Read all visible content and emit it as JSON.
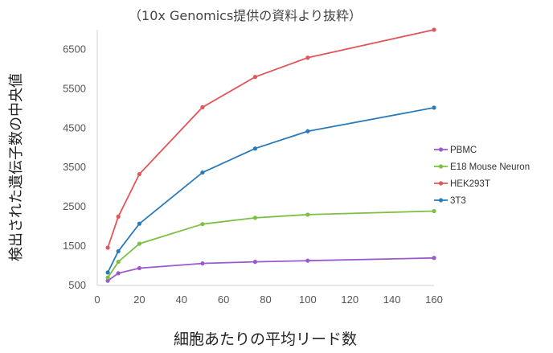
{
  "chart_data": {
    "type": "line",
    "note": "（10x Genomics提供の資料より抜粋）",
    "xlabel": "細胞あたりの平均リード数",
    "ylabel": "検出された遺伝子数の中央値",
    "xlim": [
      0,
      160
    ],
    "ylim": [
      500,
      7000
    ],
    "xticks": [
      0,
      20,
      40,
      60,
      80,
      100,
      120,
      140,
      160
    ],
    "yticks": [
      500,
      1500,
      2500,
      3500,
      4500,
      5500,
      6500
    ],
    "grid": false,
    "legend_position": "right",
    "series": [
      {
        "name": "PBMC",
        "color": "#9b59d0",
        "x": [
          5,
          10,
          20,
          50,
          75,
          100,
          160
        ],
        "y": [
          620,
          810,
          940,
          1060,
          1100,
          1130,
          1200
        ]
      },
      {
        "name": "E18 Mouse Neuron",
        "color": "#7cc043",
        "x": [
          5,
          10,
          20,
          50,
          75,
          100,
          160
        ],
        "y": [
          700,
          1100,
          1560,
          2060,
          2220,
          2300,
          2390
        ]
      },
      {
        "name": "HEK293T",
        "color": "#e0565a",
        "x": [
          5,
          10,
          20,
          50,
          75,
          100,
          160
        ],
        "y": [
          1460,
          2250,
          3330,
          5030,
          5800,
          6290,
          7000
        ]
      },
      {
        "name": "3T3",
        "color": "#2b7bba",
        "x": [
          5,
          10,
          20,
          50,
          75,
          100,
          160
        ],
        "y": [
          830,
          1370,
          2070,
          3370,
          3980,
          4420,
          5020
        ]
      }
    ]
  }
}
